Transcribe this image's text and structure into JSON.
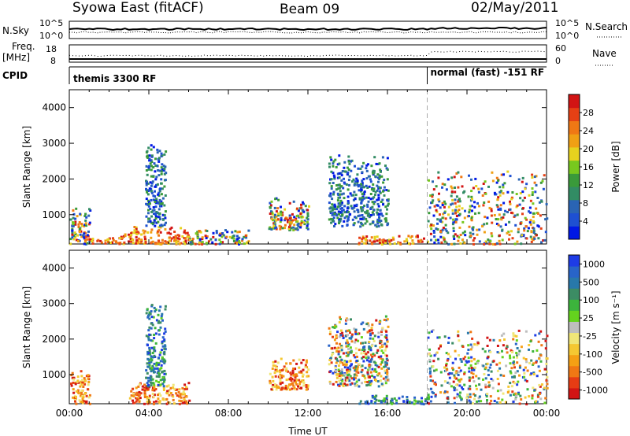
{
  "header": {
    "station": "Syowa East (fitACF)",
    "beam": "Beam 09",
    "date": "02/May/2011"
  },
  "top_panels": {
    "nsky_label": "N.Sky",
    "nsky_scale": [
      "10^5",
      "10^0"
    ],
    "nsearch_label": "N.Search",
    "nsearch_scale": [
      "10^5",
      "10^0"
    ],
    "freq_label": "Freq.",
    "freq_unit": "[MHz]",
    "freq_scale": [
      "18",
      "8"
    ],
    "nave_label": "Nave",
    "nave_scale": [
      "60",
      "0"
    ],
    "cpid_label": "CPID",
    "cpid_segments": [
      {
        "name": "themis 3300 RF",
        "start_hour": 0,
        "end_hour": 18
      },
      {
        "name": "normal (fast) -151 RF",
        "start_hour": 18,
        "end_hour": 24
      }
    ]
  },
  "chart_data": [
    {
      "type": "heatmap",
      "id": "power",
      "xlabel": "",
      "ylabel": "Slant Range [km]",
      "xlim": [
        0,
        24
      ],
      "ylim": [
        180,
        4500
      ],
      "yticks": [
        1000,
        2000,
        3000,
        4000
      ],
      "colorbar": {
        "label": "Power [dB]",
        "ticks": [
          "4",
          "8",
          "12",
          "16",
          "20",
          "24",
          "28"
        ],
        "colors": [
          "#0018e6",
          "#1e50d2",
          "#2a64b4",
          "#328c64",
          "#3a9a3a",
          "#78c81e",
          "#e6d21e",
          "#f0a014",
          "#f07814",
          "#e64014",
          "#d21414"
        ]
      },
      "regions": [
        {
          "x": [
            0,
            1
          ],
          "y": [
            200,
            1200
          ],
          "level": "mixed"
        },
        {
          "x": [
            1,
            2
          ],
          "y": [
            200,
            400
          ],
          "level": "high"
        },
        {
          "x": [
            2,
            3
          ],
          "y": [
            200,
            500
          ],
          "level": "high"
        },
        {
          "x": [
            3,
            6
          ],
          "y": [
            200,
            700
          ],
          "level": "high"
        },
        {
          "x": [
            3.8,
            4.8
          ],
          "y": [
            700,
            3000
          ],
          "level": "low"
        },
        {
          "x": [
            6,
            9
          ],
          "y": [
            200,
            600
          ],
          "level": "mixed"
        },
        {
          "x": [
            10,
            12
          ],
          "y": [
            600,
            1500
          ],
          "level": "mixed"
        },
        {
          "x": [
            13,
            16
          ],
          "y": [
            700,
            2700
          ],
          "level": "low"
        },
        {
          "x": [
            14.5,
            18
          ],
          "y": [
            200,
            450
          ],
          "level": "high"
        },
        {
          "x": [
            18,
            24
          ],
          "y": [
            200,
            2300
          ],
          "level": "mixed"
        }
      ],
      "boundary_hour": 18
    },
    {
      "type": "heatmap",
      "id": "velocity",
      "xlabel": "Time UT",
      "ylabel": "Slant Range [km]",
      "xlim": [
        0,
        24
      ],
      "ylim": [
        180,
        4500
      ],
      "yticks": [
        1000,
        2000,
        3000,
        4000
      ],
      "xticks": [
        "00:00",
        "04:00",
        "08:00",
        "12:00",
        "16:00",
        "20:00",
        "00:00"
      ],
      "colorbar": {
        "label": "Velocity [m s⁻¹]",
        "ticks": [
          "1000",
          "500",
          "100",
          "25",
          "-25",
          "-100",
          "-500",
          "-1000"
        ],
        "colors": [
          "#1e3ce6",
          "#2864c8",
          "#2878aa",
          "#3c8c64",
          "#3cb43c",
          "#64d21e",
          "#bebebe",
          "#f0e678",
          "#f5c832",
          "#f5a014",
          "#f07814",
          "#e63c14",
          "#d21414"
        ]
      },
      "regions": [
        {
          "x": [
            0,
            1
          ],
          "y": [
            200,
            1200
          ],
          "level": "negative"
        },
        {
          "x": [
            3,
            6
          ],
          "y": [
            200,
            800
          ],
          "level": "negative"
        },
        {
          "x": [
            3.8,
            4.8
          ],
          "y": [
            700,
            3000
          ],
          "level": "positive"
        },
        {
          "x": [
            10,
            12
          ],
          "y": [
            600,
            1500
          ],
          "level": "negative"
        },
        {
          "x": [
            13,
            16
          ],
          "y": [
            700,
            2700
          ],
          "level": "mixed"
        },
        {
          "x": [
            14.5,
            18
          ],
          "y": [
            200,
            450
          ],
          "level": "positive"
        },
        {
          "x": [
            18,
            24
          ],
          "y": [
            200,
            2300
          ],
          "level": "mixed"
        }
      ],
      "boundary_hour": 18
    }
  ]
}
